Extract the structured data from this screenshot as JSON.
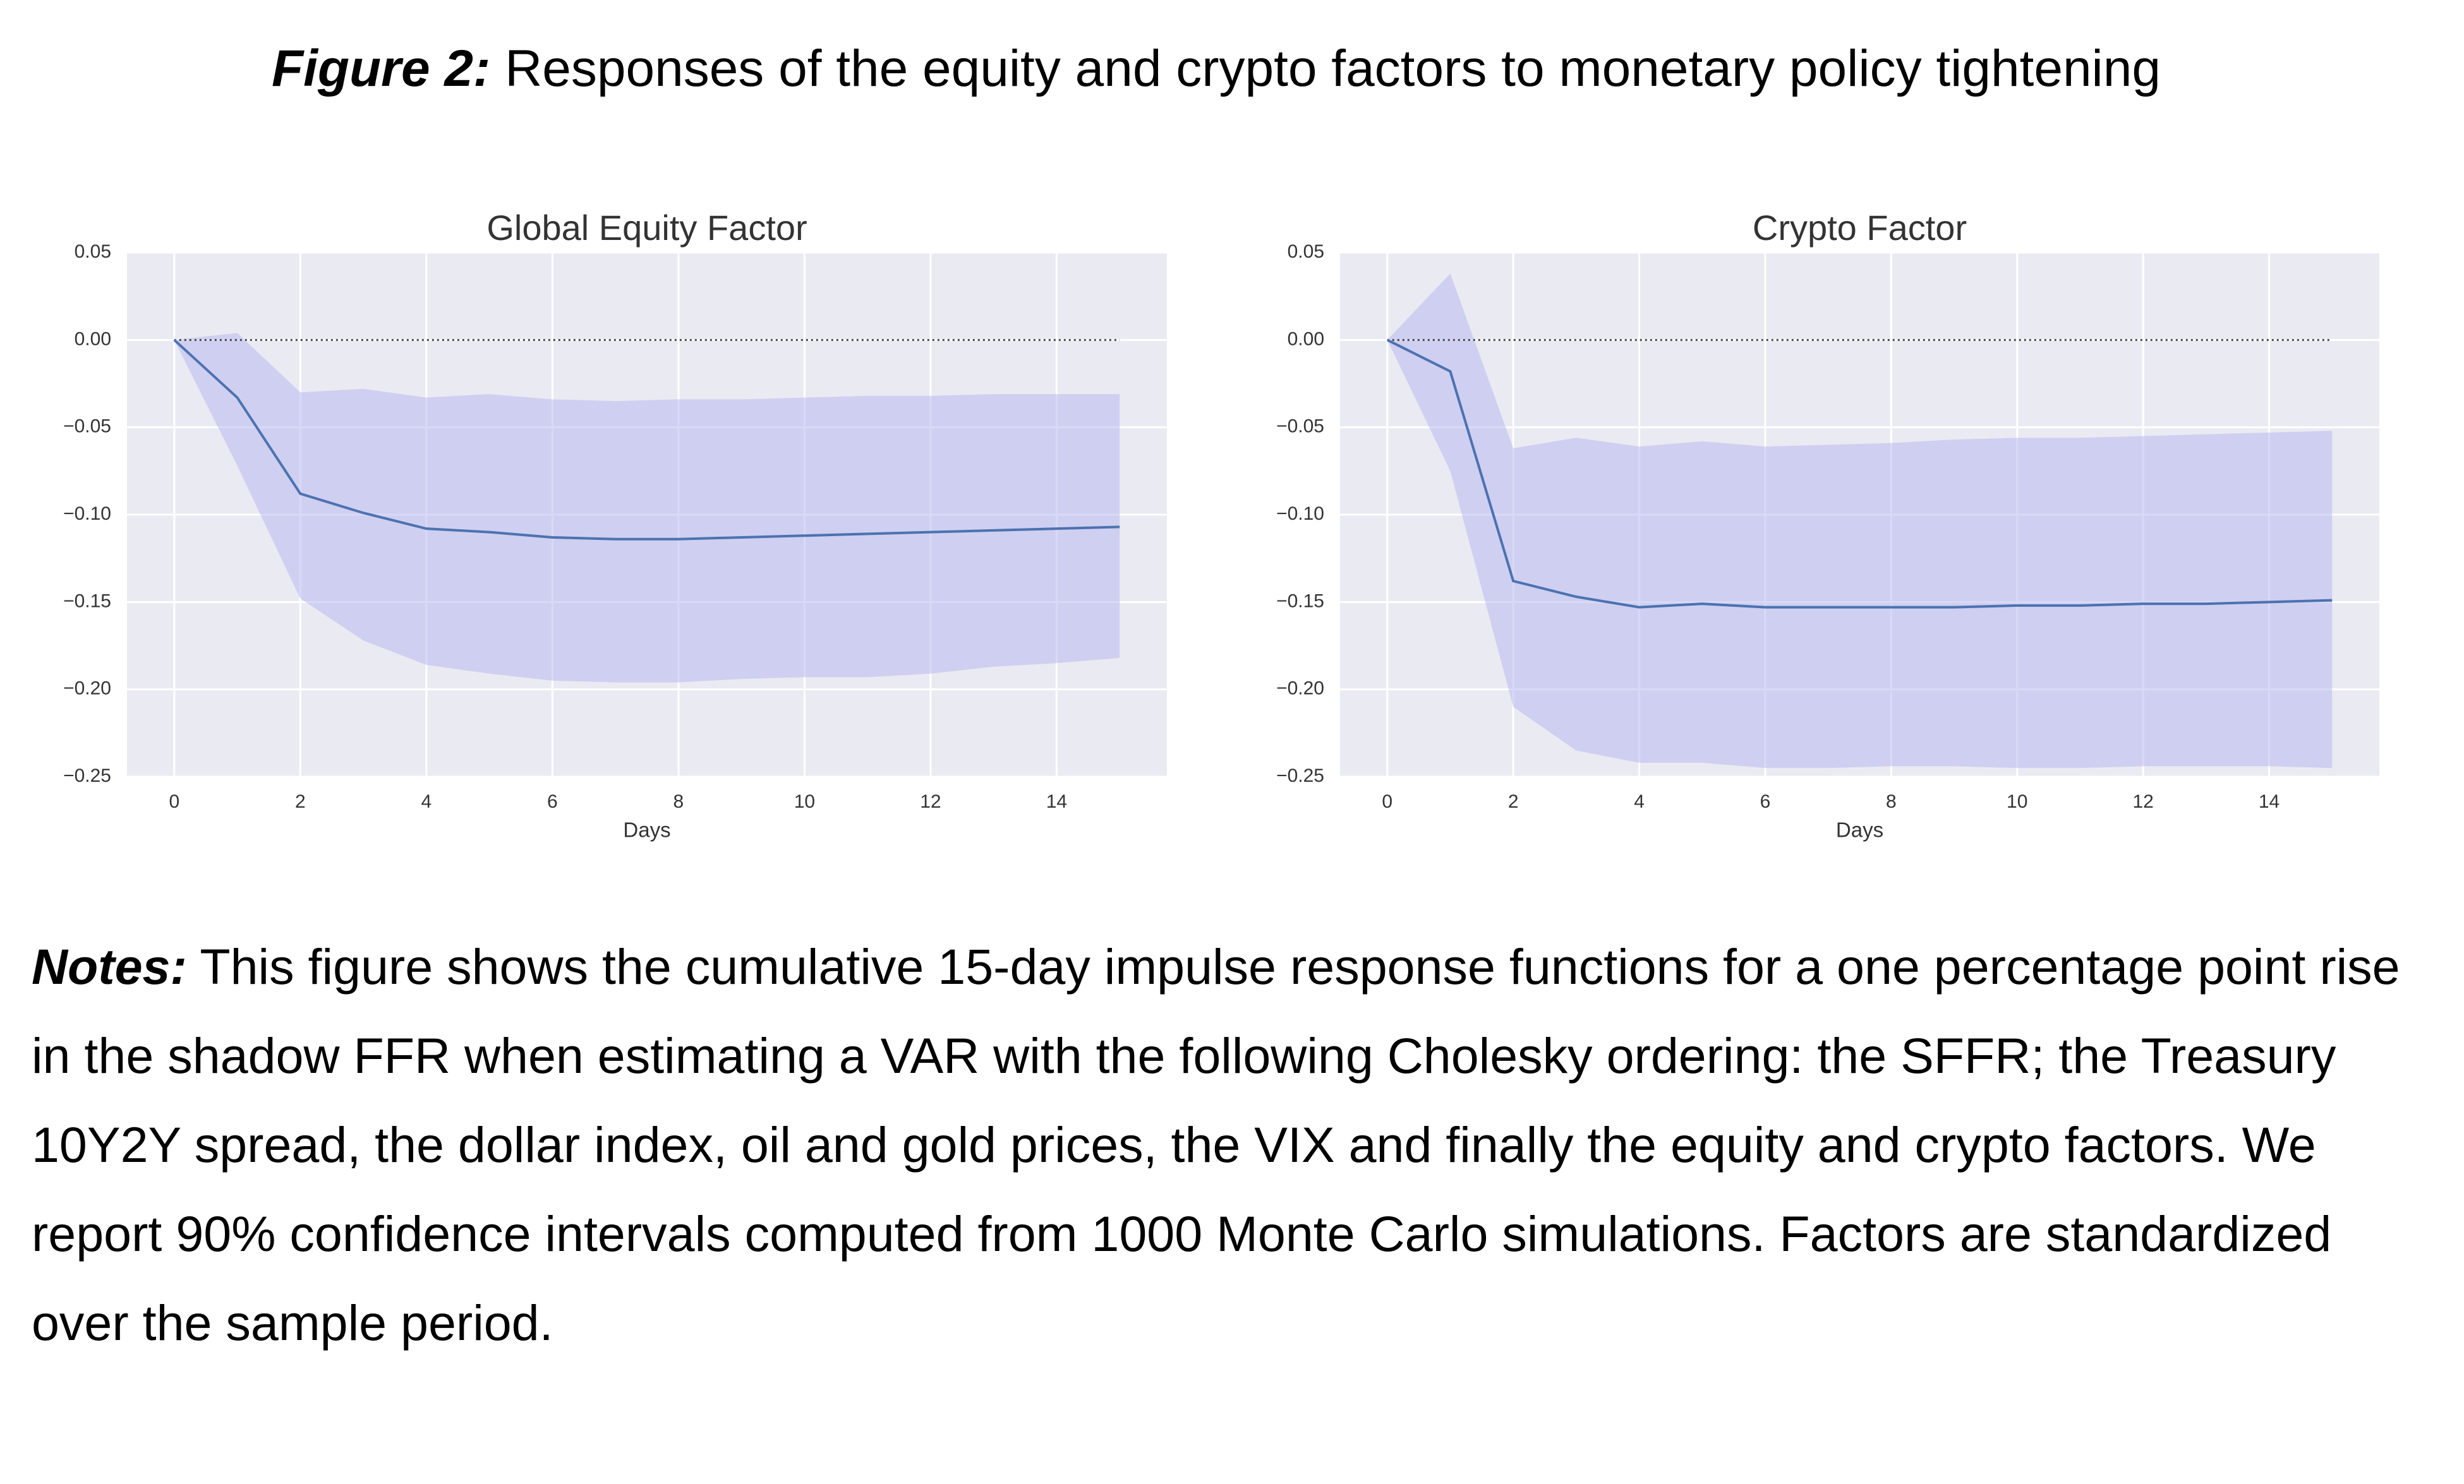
{
  "title": {
    "label": "Figure 2:",
    "text": "Responses of the equity and crypto factors to monetary policy tightening"
  },
  "chart_data": [
    {
      "type": "line",
      "title": "Global Equity Factor",
      "xlabel": "Days",
      "x": [
        0,
        1,
        2,
        3,
        4,
        5,
        6,
        7,
        8,
        9,
        10,
        11,
        12,
        13,
        14,
        15
      ],
      "values": [
        0,
        -0.033,
        -0.088,
        -0.099,
        -0.108,
        -0.11,
        -0.113,
        -0.114,
        -0.114,
        -0.113,
        -0.112,
        -0.111,
        -0.11,
        -0.109,
        -0.108,
        -0.107
      ],
      "ci_upper": [
        0,
        0.004,
        -0.03,
        -0.028,
        -0.033,
        -0.031,
        -0.034,
        -0.035,
        -0.034,
        -0.034,
        -0.033,
        -0.032,
        -0.032,
        -0.031,
        -0.031,
        -0.031
      ],
      "ci_lower": [
        0,
        -0.072,
        -0.148,
        -0.172,
        -0.186,
        -0.191,
        -0.195,
        -0.196,
        -0.196,
        -0.194,
        -0.193,
        -0.193,
        -0.191,
        -0.187,
        -0.185,
        -0.182
      ],
      "color": "#4c72b0",
      "band_color": "#b4b4f0",
      "hline": 0,
      "xlim": [
        -0.75,
        15.75
      ],
      "xticks": [
        0,
        2,
        4,
        6,
        8,
        10,
        12,
        14
      ],
      "ylim": [
        -0.25,
        0.05
      ],
      "yticks": [
        0.05,
        {
          "value": 0,
          "label": "0.00"
        },
        {
          "value": -0.05,
          "label": "−0.05"
        },
        {
          "value": -0.1,
          "label": "−0.10"
        },
        {
          "value": -0.15,
          "label": "−0.15"
        },
        {
          "value": -0.2,
          "label": "−0.20"
        },
        {
          "value": -0.25,
          "label": "−0.25"
        }
      ],
      "grid": true
    },
    {
      "type": "line",
      "title": "Crypto Factor",
      "xlabel": "Days",
      "x": [
        0,
        1,
        2,
        3,
        4,
        5,
        6,
        7,
        8,
        9,
        10,
        11,
        12,
        13,
        14,
        15
      ],
      "values": [
        0,
        -0.018,
        -0.138,
        -0.147,
        -0.153,
        -0.151,
        -0.153,
        -0.153,
        -0.153,
        -0.153,
        -0.152,
        -0.152,
        -0.151,
        -0.151,
        -0.15,
        -0.149
      ],
      "ci_upper": [
        0,
        0.038,
        -0.062,
        -0.056,
        -0.061,
        -0.058,
        -0.061,
        -0.06,
        -0.059,
        -0.057,
        -0.056,
        -0.056,
        -0.055,
        -0.054,
        -0.053,
        -0.052
      ],
      "ci_lower": [
        0,
        -0.075,
        -0.21,
        -0.235,
        -0.242,
        -0.242,
        -0.245,
        -0.245,
        -0.244,
        -0.244,
        -0.245,
        -0.245,
        -0.244,
        -0.244,
        -0.244,
        -0.245
      ],
      "color": "#4c72b0",
      "band_color": "#b4b4f0",
      "hline": 0,
      "xlim": [
        -0.75,
        15.75
      ],
      "xticks": [
        0,
        2,
        4,
        6,
        8,
        10,
        12,
        14
      ],
      "ylim": [
        -0.25,
        0.05
      ],
      "yticks": [
        0.05,
        {
          "value": 0,
          "label": "0.00"
        },
        {
          "value": -0.05,
          "label": "−0.05"
        },
        {
          "value": -0.1,
          "label": "−0.10"
        },
        {
          "value": -0.15,
          "label": "−0.15"
        },
        {
          "value": -0.2,
          "label": "−0.20"
        },
        {
          "value": -0.25,
          "label": "−0.25"
        }
      ],
      "grid": true
    }
  ],
  "notes": {
    "label": "Notes:",
    "text": "This figure shows the cumulative 15-day impulse response functions for a one percentage point rise in the shadow FFR when estimating a VAR with the following Cholesky ordering: the SFFR; the Treasury 10Y2Y spread, the dollar index, oil and gold prices, the VIX and finally the equity and crypto factors. We report 90% confidence intervals computed from 1000 Monte Carlo simulations. Factors are standardized over the sample period."
  }
}
